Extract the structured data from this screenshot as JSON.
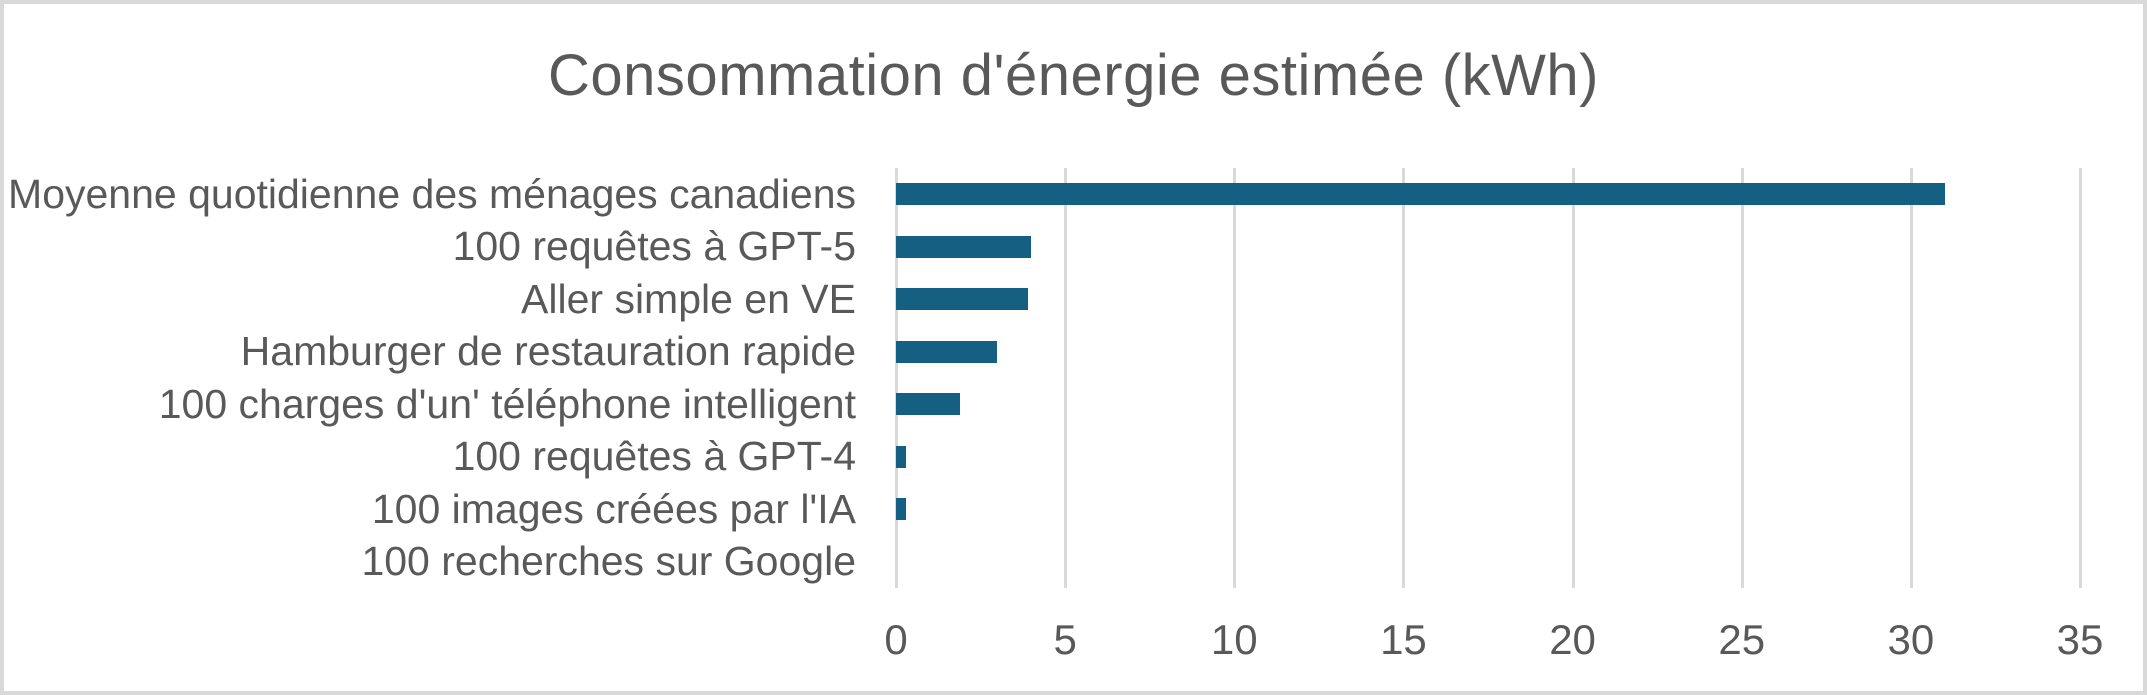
{
  "chart_data": {
    "type": "bar",
    "orientation": "horizontal",
    "title": "Consommation d'énergie estimée (kWh)",
    "categories": [
      "Moyenne quotidienne des ménages canadiens",
      "100 requêtes à GPT-5",
      "Aller simple en VE",
      "Hamburger de restauration rapide",
      "100 charges d'un' téléphone intelligent",
      "100 requêtes à GPT-4",
      "100 images créées par l'IA",
      "100 recherches sur Google"
    ],
    "values": [
      31,
      4,
      3.9,
      3,
      1.9,
      0.3,
      0.3,
      0
    ],
    "xlabel": "",
    "ylabel": "",
    "xlim": [
      0,
      35
    ],
    "x_ticks": [
      0,
      5,
      10,
      15,
      20,
      25,
      30,
      35
    ],
    "grid": "vertical-only",
    "legend": "none",
    "colors": {
      "bar": "#156082",
      "gridline": "#d9d9d9",
      "text": "#595959",
      "title": "#595959",
      "frame_border": "#d9d9d9",
      "background": "#ffffff"
    }
  }
}
